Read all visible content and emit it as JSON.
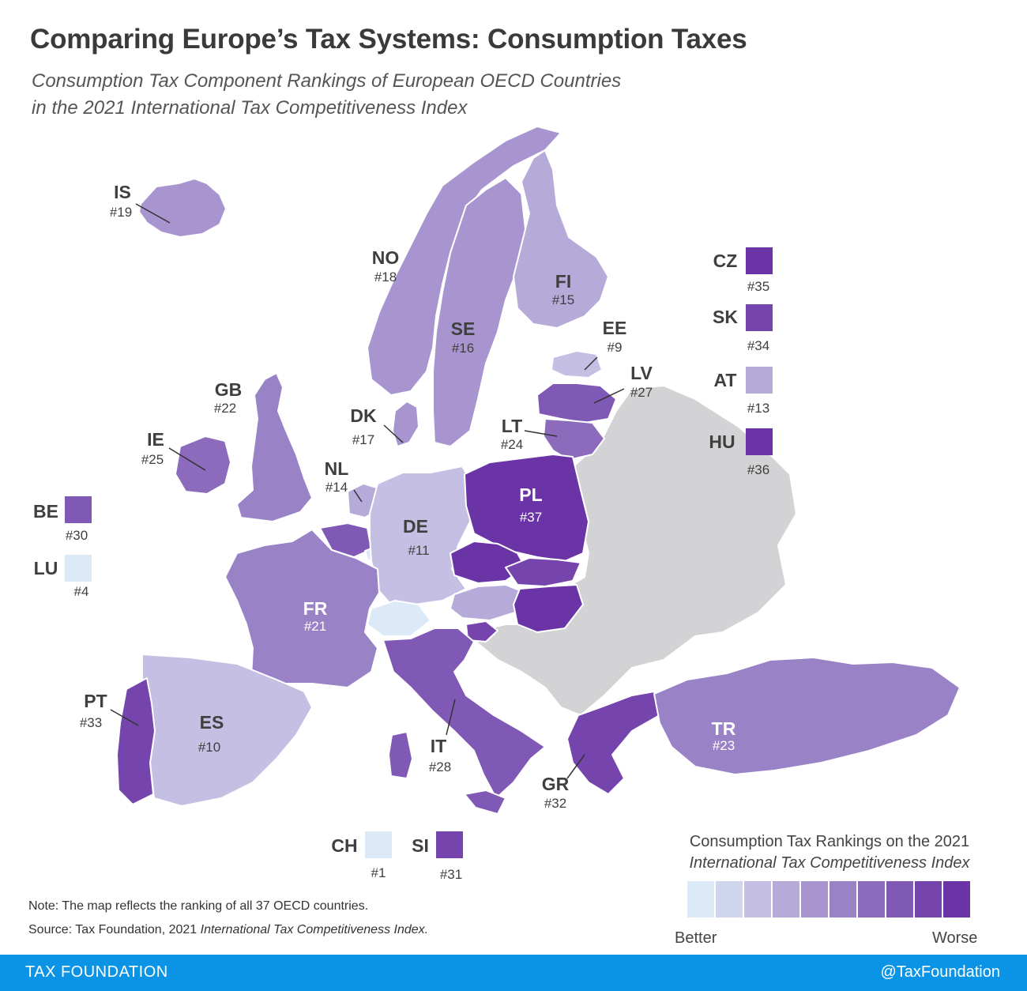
{
  "title": "Comparing Europe’s Tax Systems: Consumption Taxes",
  "subtitle": {
    "line1": "Consumption Tax Component Rankings of European OECD Countries",
    "line2": "in the 2021 International Tax Competitiveness Index"
  },
  "colors": {
    "non_oecd": "#d3d3d5",
    "border": "#ffffff",
    "scale": [
      "#dbeaf6",
      "#d0d5ee",
      "#c4bfe3",
      "#b6aad8",
      "#a895cf",
      "#9a82c7",
      "#8c6bbd",
      "#8058b5",
      "#7545ad",
      "#6b34a6"
    ]
  },
  "countries": [
    {
      "code": "IS",
      "rank": "#19"
    },
    {
      "code": "NO",
      "rank": "#18"
    },
    {
      "code": "FI",
      "rank": "#15"
    },
    {
      "code": "SE",
      "rank": "#16"
    },
    {
      "code": "EE",
      "rank": "#9"
    },
    {
      "code": "LV",
      "rank": "#27"
    },
    {
      "code": "LT",
      "rank": "#24"
    },
    {
      "code": "GB",
      "rank": "#22"
    },
    {
      "code": "DK",
      "rank": "#17"
    },
    {
      "code": "IE",
      "rank": "#25"
    },
    {
      "code": "NL",
      "rank": "#14"
    },
    {
      "code": "PL",
      "rank": "#37"
    },
    {
      "code": "DE",
      "rank": "#11"
    },
    {
      "code": "FR",
      "rank": "#21"
    },
    {
      "code": "PT",
      "rank": "#33"
    },
    {
      "code": "ES",
      "rank": "#10"
    },
    {
      "code": "IT",
      "rank": "#28"
    },
    {
      "code": "GR",
      "rank": "#32"
    },
    {
      "code": "TR",
      "rank": "#23"
    }
  ],
  "callouts": [
    {
      "code": "CZ",
      "rank": "#35"
    },
    {
      "code": "SK",
      "rank": "#34"
    },
    {
      "code": "AT",
      "rank": "#13"
    },
    {
      "code": "HU",
      "rank": "#36"
    },
    {
      "code": "BE",
      "rank": "#30"
    },
    {
      "code": "LU",
      "rank": "#4"
    },
    {
      "code": "CH",
      "rank": "#1"
    },
    {
      "code": "SI",
      "rank": "#31"
    }
  ],
  "legend": {
    "title_line1": "Consumption Tax Rankings on the 2021",
    "title_line2": "International Tax Competitiveness Index",
    "better": "Better",
    "worse": "Worse"
  },
  "note": "Note: The map reflects the ranking of all 37 OECD countries.",
  "source_prefix": "Source: Tax Foundation, 2021 ",
  "source_italic": "International Tax Competitiveness Index.",
  "footer": {
    "left": "TAX FOUNDATION",
    "right": "@TaxFoundation"
  }
}
